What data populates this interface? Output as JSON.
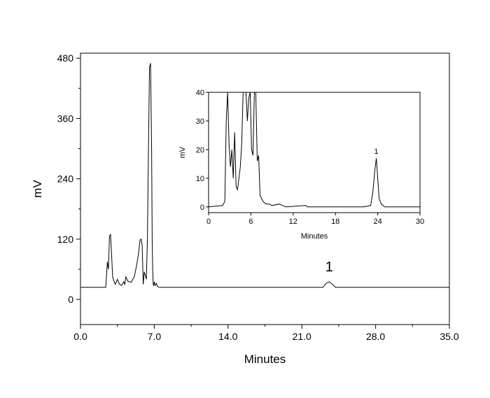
{
  "chart_data": [
    {
      "type": "line",
      "xlabel": "Minutes",
      "ylabel": "mV",
      "xlim": [
        0,
        35
      ],
      "ylim": [
        -50,
        490
      ],
      "x_ticks": [
        "0.0",
        "7.0",
        "14.0",
        "21.0",
        "28.0",
        "35.0"
      ],
      "x_tick_values": [
        0,
        7,
        14,
        21,
        28,
        35
      ],
      "y_ticks": [
        "0",
        "120",
        "240",
        "360",
        "480"
      ],
      "y_tick_values": [
        0,
        120,
        240,
        360,
        480
      ],
      "annotations": [
        {
          "text": "1",
          "x": 23.6,
          "y": 50
        }
      ],
      "grid": false,
      "series": [
        {
          "x": [
            0,
            2.4,
            2.55,
            2.65,
            2.75,
            2.85,
            2.95,
            3.05,
            3.15,
            3.3,
            3.5,
            3.7,
            3.9,
            4.1,
            4.2,
            4.3,
            4.5,
            4.8,
            5.1,
            5.3,
            5.5,
            5.65,
            5.75,
            5.85,
            5.95,
            6.05,
            6.15,
            6.25,
            6.35,
            6.45,
            6.55,
            6.65,
            6.75,
            6.8,
            6.85,
            6.9,
            6.95,
            7.0,
            7.05,
            7.1,
            7.2,
            7.3,
            7.5,
            7.8,
            23.0,
            23.3,
            23.6,
            23.9,
            24.2,
            35.0
          ],
          "y": [
            24,
            24,
            75,
            60,
            125,
            130,
            90,
            45,
            38,
            30,
            40,
            30,
            28,
            35,
            30,
            45,
            36,
            34,
            45,
            65,
            90,
            118,
            120,
            108,
            30,
            55,
            48,
            40,
            120,
            300,
            462,
            470,
            300,
            120,
            60,
            30,
            28,
            35,
            30,
            28,
            32,
            26,
            24,
            24,
            24,
            32,
            35,
            30,
            24,
            24
          ]
        }
      ]
    },
    {
      "type": "line",
      "xlabel": "Minutes",
      "ylabel": "mV",
      "xlim": [
        0,
        30
      ],
      "ylim": [
        -2,
        40
      ],
      "x_ticks": [
        "0",
        "6",
        "12",
        "18",
        "24",
        "30"
      ],
      "x_tick_values": [
        0,
        6,
        12,
        18,
        24,
        30
      ],
      "y_ticks": [
        "0",
        "10",
        "20",
        "30",
        "40"
      ],
      "y_tick_values": [
        0,
        10,
        20,
        30,
        40
      ],
      "annotations": [
        {
          "text": "1",
          "x": 23.8,
          "y": 17.5
        }
      ],
      "grid": false,
      "series": [
        {
          "x": [
            0,
            2.0,
            2.3,
            2.5,
            2.7,
            2.9,
            3.1,
            3.3,
            3.5,
            3.7,
            3.9,
            4.1,
            4.3,
            4.5,
            4.7,
            4.9,
            5.1,
            5.3,
            5.5,
            5.7,
            5.9,
            6.1,
            6.3,
            6.5,
            6.7,
            6.9,
            7.1,
            7.3,
            7.5,
            7.7,
            7.9,
            8.2,
            8.6,
            9.0,
            10.0,
            10.5,
            11.0,
            13.8,
            14.0,
            14.2,
            22.0,
            23.0,
            23.3,
            23.6,
            23.8,
            24.0,
            24.2,
            24.5,
            25.0,
            30.0
          ],
          "y": [
            0,
            0.5,
            2,
            30,
            40,
            22,
            14,
            20,
            10,
            26,
            7,
            6,
            10,
            14,
            22,
            40,
            40,
            40,
            30,
            38,
            40,
            20,
            18,
            40,
            40,
            16,
            18,
            4,
            3,
            2,
            1.5,
            1,
            1,
            0.5,
            1,
            0.5,
            0,
            0.5,
            0,
            0,
            0,
            0.5,
            5,
            13,
            17,
            10,
            3,
            1,
            0,
            0
          ]
        }
      ]
    }
  ]
}
